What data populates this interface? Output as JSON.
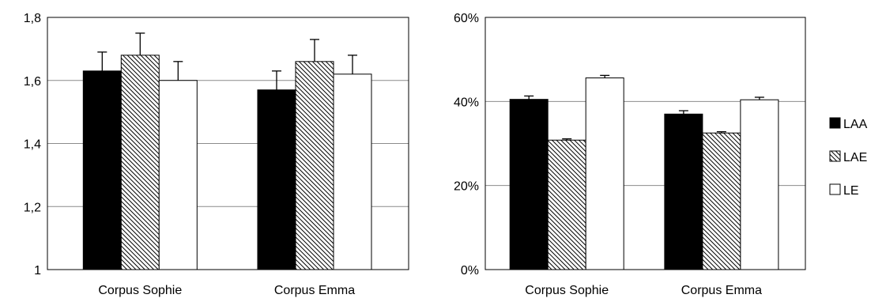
{
  "chart_data": [
    {
      "type": "bar",
      "categories": [
        "Corpus Sophie",
        "Corpus Emma"
      ],
      "ylim": [
        1,
        1.8
      ],
      "yticks": [
        "1",
        "1,2",
        "1,4",
        "1,6",
        "1,8"
      ],
      "grid": true,
      "series": [
        {
          "name": "LAA",
          "values": [
            1.63,
            1.57
          ],
          "errors": [
            0.06,
            0.06
          ]
        },
        {
          "name": "LAE",
          "values": [
            1.68,
            1.66
          ],
          "errors": [
            0.07,
            0.07
          ]
        },
        {
          "name": "LE",
          "values": [
            1.6,
            1.62
          ],
          "errors": [
            0.06,
            0.06
          ]
        }
      ]
    },
    {
      "type": "bar",
      "categories": [
        "Corpus Sophie",
        "Corpus Emma"
      ],
      "ylim": [
        0,
        60
      ],
      "yticks": [
        "0%",
        "20%",
        "40%",
        "60%"
      ],
      "grid": true,
      "legend_position": "right",
      "series": [
        {
          "name": "LAA",
          "values": [
            40.5,
            37.0
          ],
          "errors": [
            0.8,
            0.8
          ]
        },
        {
          "name": "LAE",
          "values": [
            30.8,
            32.5
          ],
          "errors": [
            0.3,
            0.3
          ]
        },
        {
          "name": "LE",
          "values": [
            45.6,
            40.4
          ],
          "errors": [
            0.6,
            0.6
          ]
        }
      ]
    }
  ],
  "series_style": {
    "LAA": {
      "fill": "#000000",
      "pattern": "solid"
    },
    "LAE": {
      "fill": "#ffffff",
      "pattern": "diagonal-hatch"
    },
    "LE": {
      "fill": "#ffffff",
      "pattern": "none"
    }
  }
}
